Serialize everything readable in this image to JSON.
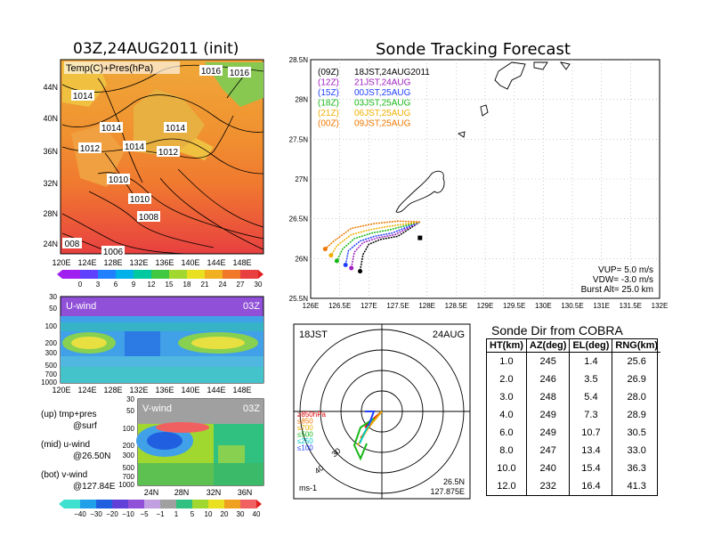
{
  "map_panel": {
    "title": "03Z,24AUG2011 (init)",
    "label": "Temp(C)+Pres(hPa)",
    "lon_ticks": [
      "120E",
      "124E",
      "128E",
      "132E",
      "136E",
      "140E",
      "144E",
      "148E"
    ],
    "lat_ticks": [
      "24N",
      "28N",
      "32N",
      "36N",
      "40N",
      "44N"
    ],
    "isobar_labels": [
      "1014",
      "1016",
      "1014",
      "1014",
      "1012",
      "1014",
      "1012",
      "1010",
      "1010",
      "1008",
      "1006",
      "008",
      "1016"
    ],
    "colorbar_ticks": [
      "0",
      "3",
      "6",
      "9",
      "12",
      "15",
      "18",
      "21",
      "24",
      "27",
      "30"
    ]
  },
  "uwind_panel": {
    "label": "U-wind",
    "time": "03Z",
    "lev_ticks": [
      "30",
      "50",
      "100",
      "200",
      "300",
      "500",
      "700",
      "1000"
    ],
    "lon_ticks": [
      "120E",
      "124E",
      "128E",
      "132E",
      "136E",
      "140E",
      "144E",
      "148E"
    ]
  },
  "vwind_panel": {
    "label": "V-wind",
    "time": "03Z",
    "lev_ticks": [
      "30",
      "50",
      "100",
      "200",
      "300",
      "500",
      "700",
      "1000"
    ],
    "lat_ticks": [
      "24N",
      "28N",
      "32N",
      "36N"
    ],
    "colorbar_ticks": [
      "−40",
      "−30",
      "−20",
      "−10",
      "−5",
      "−1",
      "1",
      "5",
      "10",
      "20",
      "30",
      "40"
    ]
  },
  "notes": {
    "up": "(up) tmp+pres",
    "up2": "@surf",
    "mid": "(mid) u-wind",
    "mid2": "@26.50N",
    "bot": "(bot) v-wind",
    "bot2": "@127.84E"
  },
  "track_panel": {
    "title": "Sonde Tracking Forecast",
    "lat_ticks": [
      "25.5N",
      "26N",
      "26.5N",
      "27N",
      "27.5N",
      "28N",
      "28.5N"
    ],
    "lon_ticks": [
      "126E",
      "126.5E",
      "127E",
      "127.5E",
      "128E",
      "128.5E",
      "129E",
      "129.5E",
      "130E",
      "130.5E",
      "131E",
      "131.5E",
      "132E"
    ],
    "legend": [
      {
        "z": "(09Z)",
        "jst": "18JST,24AUG2011",
        "color": "#000000"
      },
      {
        "z": "(12Z)",
        "jst": "21JST,24AUG",
        "color": "#a020c0"
      },
      {
        "z": "(15Z)",
        "jst": "00JST,25AUG",
        "color": "#2040ff"
      },
      {
        "z": "(18Z)",
        "jst": "03JST,25AUG",
        "color": "#18b818"
      },
      {
        "z": "(21Z)",
        "jst": "06JST,25AUG",
        "color": "#f0b000"
      },
      {
        "z": "(00Z)",
        "jst": "09JST,25AUG",
        "color": "#f07800"
      }
    ],
    "vup": "VUP= 5.0 m/s",
    "vdw": "VDW= -3.0 m/s",
    "burst": "Burst Alt= 25.0 km"
  },
  "polar_panel": {
    "time": "18JST",
    "date": "24AUG",
    "pos_lat": "26.5N",
    "pos_lon": "127.875E",
    "unit": "ms-1",
    "ring_labels": [
      "30",
      "40"
    ],
    "levels": [
      {
        "label": "≥850hPa",
        "color": "#e00000"
      },
      {
        "label": "≤850",
        "color": "#f07800"
      },
      {
        "label": "≤700",
        "color": "#e8b000"
      },
      {
        "label": "≤500",
        "color": "#18b818"
      },
      {
        "label": "≤250",
        "color": "#00c8c8"
      },
      {
        "label": "≤100",
        "color": "#2040ff"
      }
    ]
  },
  "table": {
    "title": "Sonde Dir from COBRA",
    "headers": [
      "HT(km)",
      "AZ(deg)",
      "EL(deg)",
      "RNG(km)"
    ],
    "rows": [
      [
        "1.0",
        "245",
        "1.4",
        "25.6"
      ],
      [
        "2.0",
        "246",
        "3.5",
        "26.9"
      ],
      [
        "3.0",
        "248",
        "5.4",
        "28.0"
      ],
      [
        "4.0",
        "249",
        "7.3",
        "28.9"
      ],
      [
        "6.0",
        "249",
        "10.7",
        "30.5"
      ],
      [
        "8.0",
        "247",
        "13.4",
        "33.0"
      ],
      [
        "10.0",
        "240",
        "15.4",
        "36.3"
      ],
      [
        "12.0",
        "232",
        "16.4",
        "41.3"
      ]
    ]
  },
  "chart_data": [
    {
      "type": "line",
      "title": "Sonde Tracking Forecast",
      "xlim": [
        126,
        132
      ],
      "ylim": [
        25.5,
        28.5
      ],
      "series": [
        {
          "name": "(09Z) 18JST,24AUG2011",
          "x": [
            127.88,
            127.5,
            127.2,
            127.0,
            126.9,
            126.85
          ],
          "y": [
            26.46,
            26.28,
            26.24,
            26.18,
            26.05,
            25.84
          ]
        },
        {
          "name": "(12Z) 21JST,24AUG",
          "x": [
            127.88,
            127.45,
            127.15,
            126.9,
            126.75,
            126.7
          ],
          "y": [
            26.46,
            26.3,
            26.26,
            26.2,
            26.08,
            25.88
          ]
        },
        {
          "name": "(15Z) 00JST,25AUG",
          "x": [
            127.88,
            127.4,
            127.1,
            126.85,
            126.65,
            126.6
          ],
          "y": [
            26.46,
            26.32,
            26.28,
            26.22,
            26.1,
            25.92
          ]
        },
        {
          "name": "(18Z) 03JST,25AUG",
          "x": [
            127.88,
            127.35,
            127.05,
            126.75,
            126.55,
            126.45
          ],
          "y": [
            26.46,
            26.36,
            26.32,
            26.25,
            26.12,
            25.97
          ]
        },
        {
          "name": "(21Z) 06JST,25AUG",
          "x": [
            127.88,
            127.3,
            127.0,
            126.7,
            126.45,
            126.35
          ],
          "y": [
            26.46,
            26.4,
            26.36,
            26.3,
            26.16,
            26.04
          ]
        },
        {
          "name": "(00Z) 09JST,25AUG",
          "x": [
            127.88,
            127.5,
            127.1,
            126.7,
            126.4,
            126.25
          ],
          "y": [
            26.46,
            26.47,
            26.44,
            26.38,
            26.22,
            26.12
          ]
        }
      ]
    },
    {
      "type": "table",
      "title": "Sonde Dir from COBRA",
      "columns": [
        "HT(km)",
        "AZ(deg)",
        "EL(deg)",
        "RNG(km)"
      ],
      "rows": [
        [
          1.0,
          245,
          1.4,
          25.6
        ],
        [
          2.0,
          246,
          3.5,
          26.9
        ],
        [
          3.0,
          248,
          5.4,
          28.0
        ],
        [
          4.0,
          249,
          7.3,
          28.9
        ],
        [
          6.0,
          249,
          10.7,
          30.5
        ],
        [
          8.0,
          247,
          13.4,
          33.0
        ],
        [
          10.0,
          240,
          15.4,
          36.3
        ],
        [
          12.0,
          232,
          16.4,
          41.3
        ]
      ]
    }
  ]
}
